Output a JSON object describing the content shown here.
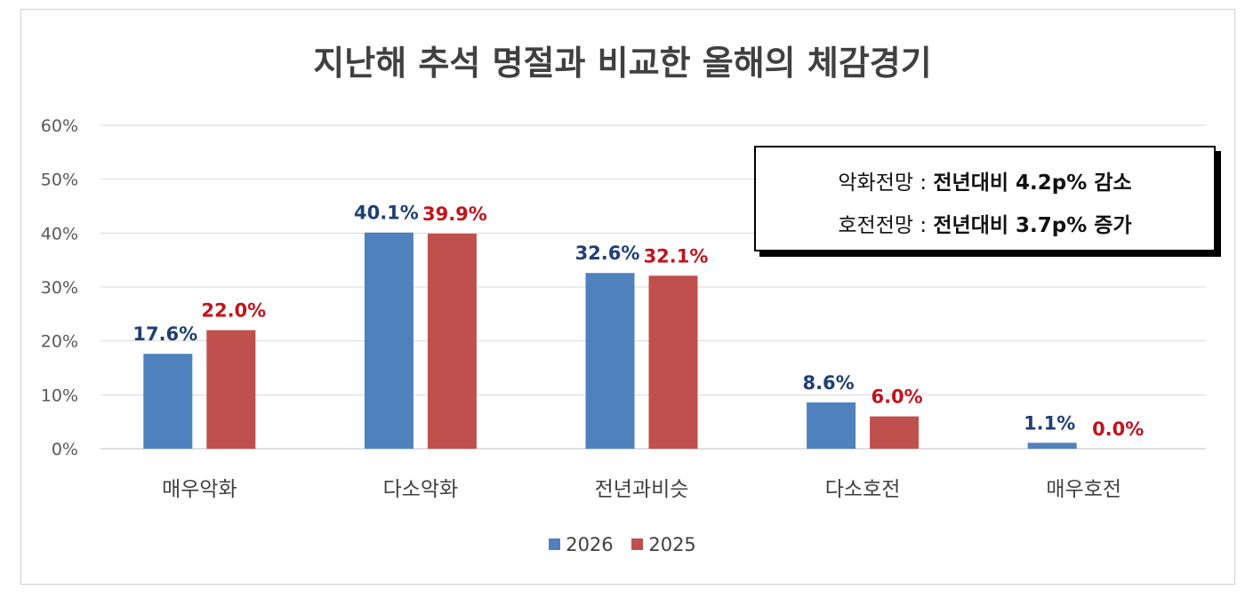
{
  "chart_data": {
    "type": "bar",
    "title": "지난해 추석 명절과 비교한 올해의 체감경기",
    "categories": [
      "매우악화",
      "다소악화",
      "전년과비슷",
      "다소호전",
      "매우호전"
    ],
    "series": [
      {
        "name": "2026",
        "color": "#4f81bd",
        "label_color": "#1f3f75",
        "values": [
          17.6,
          40.1,
          32.6,
          8.6,
          1.1
        ],
        "labels": [
          "17.6%",
          "40.1%",
          "32.6%",
          "8.6%",
          "1.1%"
        ]
      },
      {
        "name": "2025",
        "color": "#c0504d",
        "label_color": "#c0141c",
        "values": [
          22.0,
          39.9,
          32.1,
          6.0,
          0.0
        ],
        "labels": [
          "22.0%",
          "39.9%",
          "32.1%",
          "6.0%",
          "0.0%"
        ]
      }
    ],
    "ylim": [
      0,
      60
    ],
    "yticks": [
      "0%",
      "10%",
      "20%",
      "30%",
      "40%",
      "50%",
      "60%"
    ],
    "grid": true,
    "legend_position": "bottom",
    "annotation": {
      "line1": {
        "label": "악화전망 : ",
        "detail": "전년대비 4.2p% 감소"
      },
      "line2": {
        "label": "호전전망 : ",
        "detail": "전년대비 3.7p% 증가"
      }
    }
  }
}
